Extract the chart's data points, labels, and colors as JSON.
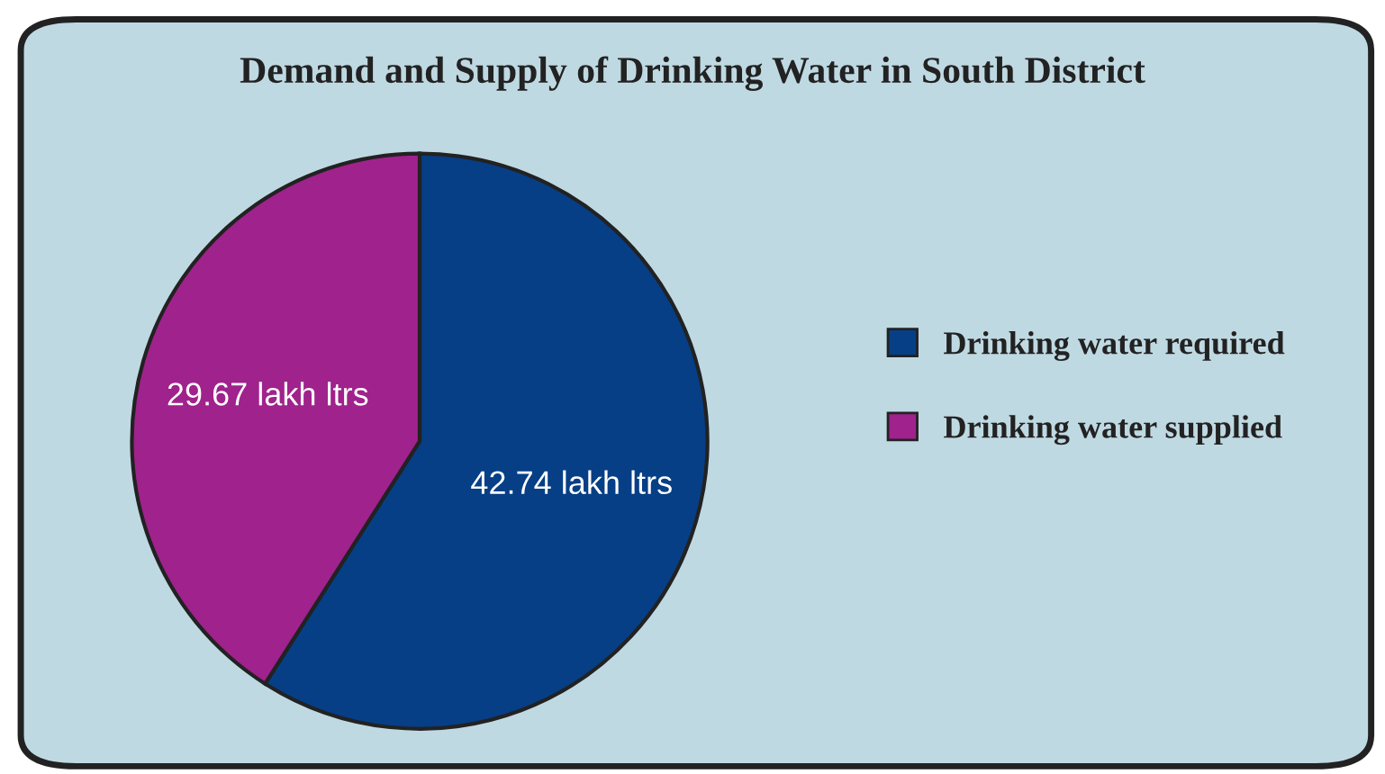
{
  "chart_data": {
    "type": "pie",
    "title": "Demand and Supply of Drinking Water in South District",
    "categories": [
      "Drinking water required",
      "Drinking water supplied"
    ],
    "values": [
      42.74,
      29.67
    ],
    "colors": [
      "#063f86",
      "#a0228c"
    ],
    "value_labels": [
      "42.74 lakh ltrs",
      "29.67 lakh ltrs"
    ],
    "legend": "right"
  }
}
